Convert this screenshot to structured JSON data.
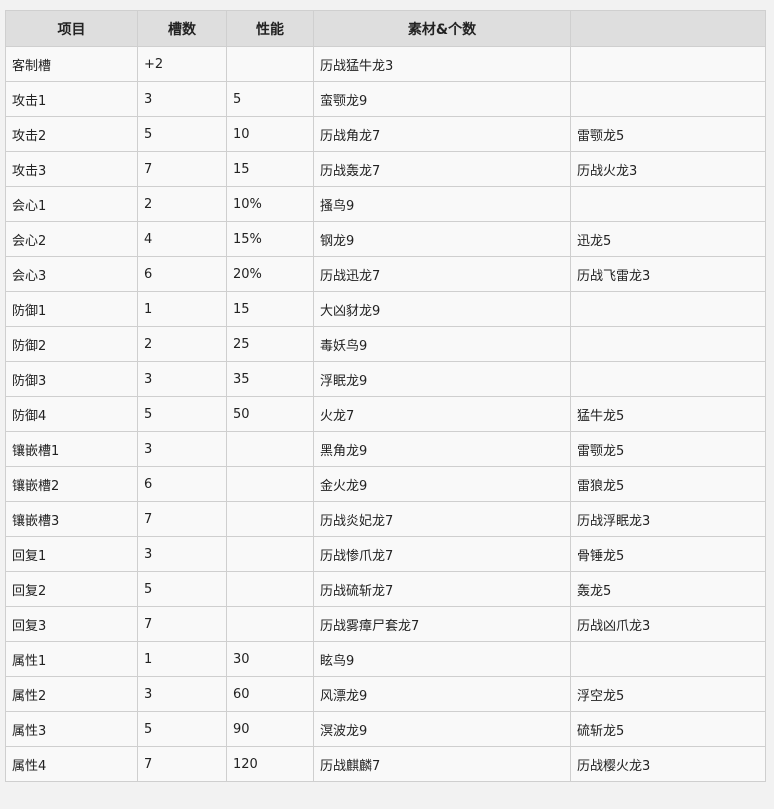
{
  "headers": [
    "项目",
    "槽数",
    "性能",
    "素材&个数",
    ""
  ],
  "rows": [
    [
      "客制槽",
      "+2",
      "",
      "历战猛牛龙3",
      ""
    ],
    [
      "攻击1",
      "3",
      "5",
      "蛮颚龙9",
      ""
    ],
    [
      "攻击2",
      "5",
      "10",
      "历战角龙7",
      "雷颚龙5"
    ],
    [
      "攻击3",
      "7",
      "15",
      "历战轰龙7",
      "历战火龙3"
    ],
    [
      "会心1",
      "2",
      "10%",
      "搔鸟9",
      ""
    ],
    [
      "会心2",
      "4",
      "15%",
      "钢龙9",
      "迅龙5"
    ],
    [
      "会心3",
      "6",
      "20%",
      "历战迅龙7",
      "历战飞雷龙3"
    ],
    [
      "防御1",
      "1",
      "15",
      "大凶豺龙9",
      ""
    ],
    [
      "防御2",
      "2",
      "25",
      "毒妖鸟9",
      ""
    ],
    [
      "防御3",
      "3",
      "35",
      "浮眠龙9",
      ""
    ],
    [
      "防御4",
      "5",
      "50",
      "火龙7",
      "猛牛龙5"
    ],
    [
      "镶嵌槽1",
      "3",
      "",
      "黑角龙9",
      "雷颚龙5"
    ],
    [
      "镶嵌槽2",
      "6",
      "",
      "金火龙9",
      "雷狼龙5"
    ],
    [
      "镶嵌槽3",
      "7",
      "",
      "历战炎妃龙7",
      "历战浮眠龙3"
    ],
    [
      "回复1",
      "3",
      "",
      "历战惨爪龙7",
      "骨锤龙5"
    ],
    [
      "回复2",
      "5",
      "",
      "历战硫斩龙7",
      "轰龙5"
    ],
    [
      "回复3",
      "7",
      "",
      "历战雾瘴尸套龙7",
      "历战凶爪龙3"
    ],
    [
      "属性1",
      "1",
      "30",
      "眩鸟9",
      ""
    ],
    [
      "属性2",
      "3",
      "60",
      "风漂龙9",
      "浮空龙5"
    ],
    [
      "属性3",
      "5",
      "90",
      "溟波龙9",
      "硫斩龙5"
    ],
    [
      "属性4",
      "7",
      "120",
      "历战麒麟7",
      "历战樱火龙3"
    ]
  ]
}
